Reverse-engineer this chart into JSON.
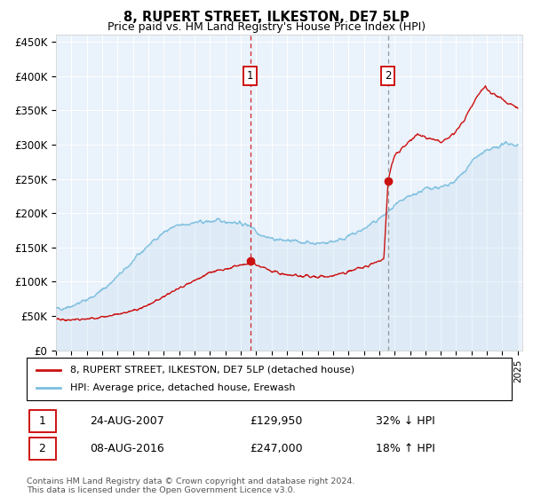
{
  "title": "8, RUPERT STREET, ILKESTON, DE7 5LP",
  "subtitle": "Price paid vs. HM Land Registry's House Price Index (HPI)",
  "ylabel_ticks": [
    "£0",
    "£50K",
    "£100K",
    "£150K",
    "£200K",
    "£250K",
    "£300K",
    "£350K",
    "£400K",
    "£450K"
  ],
  "ytick_values": [
    0,
    50000,
    100000,
    150000,
    200000,
    250000,
    300000,
    350000,
    400000,
    450000
  ],
  "ylim": [
    0,
    460000
  ],
  "hpi_color": "#7bbfdf",
  "hpi_fill_color": "#c8dff0",
  "price_color": "#cc1111",
  "marker1_year": 2007.63,
  "marker1_price": 129950,
  "marker2_year": 2016.58,
  "marker2_price": 247000,
  "legend_label1": "8, RUPERT STREET, ILKESTON, DE7 5LP (detached house)",
  "legend_label2": "HPI: Average price, detached house, Erewash",
  "annotation1_date": "24-AUG-2007",
  "annotation1_price": "£129,950",
  "annotation1_pct": "32% ↓ HPI",
  "annotation2_date": "08-AUG-2016",
  "annotation2_price": "£247,000",
  "annotation2_pct": "18% ↑ HPI",
  "footnote": "Contains HM Land Registry data © Crown copyright and database right 2024.\nThis data is licensed under the Open Government Licence v3.0.",
  "background_color": "#ffffff",
  "plot_bg_color": "#eaf2fb",
  "red_x": [
    1995,
    1995.5,
    1996,
    1996.5,
    1997,
    1997.5,
    1998,
    1998.5,
    1999,
    1999.5,
    2000,
    2000.5,
    2001,
    2001.5,
    2002,
    2002.5,
    2003,
    2003.5,
    2004,
    2004.5,
    2005,
    2005.5,
    2006,
    2006.5,
    2007,
    2007.3,
    2007.63,
    2007.9,
    2008,
    2008.5,
    2009,
    2009.5,
    2010,
    2010.5,
    2011,
    2011.5,
    2012,
    2012.5,
    2013,
    2013.5,
    2014,
    2014.5,
    2015,
    2015.5,
    2016,
    2016.3,
    2016.58,
    2016.8,
    2017,
    2017.5,
    2018,
    2018.5,
    2019,
    2019.5,
    2020,
    2020.5,
    2021,
    2021.5,
    2022,
    2022.3,
    2022.6,
    2022.9,
    2023,
    2023.3,
    2023.6,
    2023.9,
    2024,
    2024.3,
    2024.6,
    2024.9,
    2025
  ],
  "red_y": [
    45000,
    44000,
    44500,
    45000,
    46000,
    47500,
    49000,
    51000,
    53000,
    55000,
    58000,
    62000,
    67000,
    72000,
    78000,
    84000,
    90000,
    96000,
    102000,
    108000,
    113000,
    116000,
    119000,
    122000,
    124000,
    126000,
    129950,
    128000,
    125000,
    121000,
    116000,
    112000,
    110000,
    109000,
    108000,
    107500,
    107000,
    107500,
    109000,
    111000,
    114000,
    118000,
    122000,
    126000,
    130000,
    135000,
    247000,
    270000,
    285000,
    295000,
    305000,
    315000,
    310000,
    308000,
    305000,
    310000,
    320000,
    335000,
    355000,
    368000,
    378000,
    385000,
    380000,
    375000,
    370000,
    368000,
    365000,
    360000,
    358000,
    355000,
    352000
  ],
  "blue_x": [
    1995,
    1995.5,
    1996,
    1996.5,
    1997,
    1997.5,
    1998,
    1998.5,
    1999,
    1999.5,
    2000,
    2000.5,
    2001,
    2001.5,
    2002,
    2002.5,
    2003,
    2003.5,
    2004,
    2004.5,
    2005,
    2005.5,
    2006,
    2006.5,
    2007,
    2007.3,
    2007.6,
    2007.9,
    2008,
    2008.5,
    2009,
    2009.5,
    2010,
    2010.5,
    2011,
    2011.5,
    2012,
    2012.5,
    2013,
    2013.5,
    2014,
    2014.5,
    2015,
    2015.5,
    2016,
    2016.5,
    2017,
    2017.5,
    2018,
    2018.5,
    2019,
    2019.5,
    2020,
    2020.5,
    2021,
    2021.5,
    2022,
    2022.5,
    2023,
    2023.5,
    2024,
    2024.5,
    2025
  ],
  "blue_y": [
    60000,
    62000,
    65000,
    69000,
    74000,
    80000,
    88000,
    97000,
    108000,
    118000,
    130000,
    142000,
    153000,
    163000,
    172000,
    178000,
    182000,
    184000,
    186000,
    187000,
    188000,
    189000,
    188000,
    187000,
    185000,
    183000,
    182000,
    178000,
    173000,
    167000,
    163000,
    161000,
    160000,
    159000,
    158000,
    157000,
    156000,
    157000,
    159000,
    162000,
    166000,
    171000,
    177000,
    184000,
    192000,
    200000,
    210000,
    218000,
    225000,
    230000,
    235000,
    238000,
    237000,
    240000,
    248000,
    260000,
    275000,
    285000,
    290000,
    295000,
    300000,
    302000,
    298000
  ]
}
